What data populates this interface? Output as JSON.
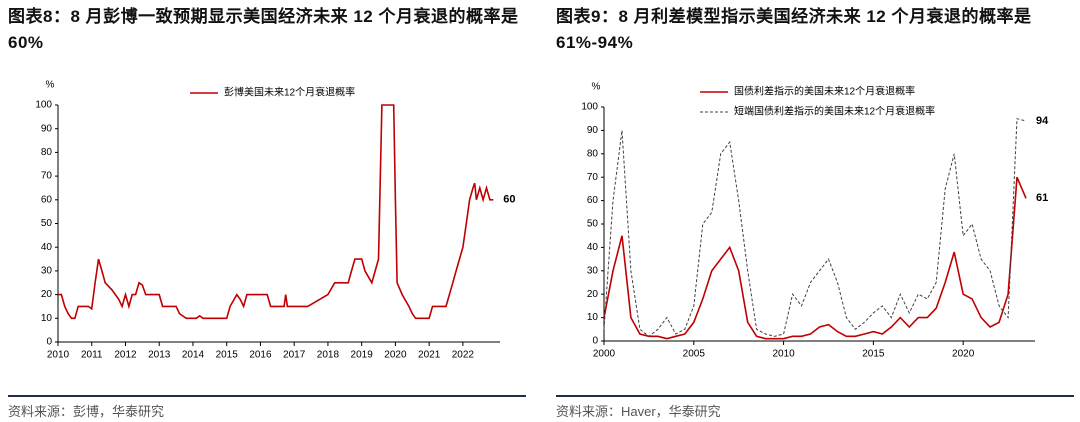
{
  "chart_data": [
    {
      "type": "line",
      "title": "图表8：8 月彭博一致预期显示美国经济未来 12 个月衰退的概率是 60%",
      "y_label": "%",
      "source": "资料来源：彭博，华泰研究",
      "xlim": [
        2010,
        2023.1
      ],
      "xticks": [
        2010,
        2011,
        2012,
        2013,
        2014,
        2015,
        2016,
        2017,
        2018,
        2019,
        2020,
        2021,
        2022
      ],
      "ylim": [
        0,
        100
      ],
      "yticks": [
        0,
        10,
        20,
        30,
        40,
        50,
        60,
        70,
        80,
        90,
        100
      ],
      "x": [
        2010.0,
        2010.1,
        2010.2,
        2010.3,
        2010.4,
        2010.5,
        2010.6,
        2010.9,
        2011.0,
        2011.1,
        2011.2,
        2011.3,
        2011.4,
        2011.6,
        2011.7,
        2011.8,
        2011.9,
        2012.0,
        2012.1,
        2012.2,
        2012.3,
        2012.4,
        2012.5,
        2012.6,
        2013.0,
        2013.1,
        2013.5,
        2013.6,
        2013.8,
        2014.1,
        2014.2,
        2014.3,
        2015.0,
        2015.1,
        2015.3,
        2015.4,
        2015.5,
        2015.6,
        2016.2,
        2016.3,
        2016.7,
        2016.75,
        2016.8,
        2017.4,
        2018.0,
        2018.2,
        2018.6,
        2018.7,
        2018.8,
        2019.0,
        2019.1,
        2019.3,
        2019.4,
        2019.5,
        2019.6,
        2019.95,
        2020.0,
        2020.05,
        2020.2,
        2020.4,
        2020.5,
        2020.6,
        2021.0,
        2021.1,
        2021.5,
        2021.6,
        2021.7,
        2021.8,
        2021.9,
        2022.0,
        2022.1,
        2022.2,
        2022.3,
        2022.35,
        2022.4,
        2022.5,
        2022.6,
        2022.7,
        2022.8,
        2022.9
      ],
      "series": [
        {
          "name": "彭博美国未来12个月衰退概率",
          "color": "#c00000",
          "line_style": "solid",
          "end_label": "60",
          "values": [
            20,
            20,
            15,
            12,
            10,
            10,
            15,
            15,
            14,
            25,
            35,
            30,
            25,
            22,
            20,
            18,
            15,
            20,
            15,
            20,
            20,
            25,
            24,
            20,
            20,
            15,
            15,
            12,
            10,
            10,
            11,
            10,
            10,
            15,
            20,
            18,
            15,
            20,
            20,
            15,
            15,
            20,
            15,
            15,
            20,
            25,
            25,
            30,
            35,
            35,
            30,
            25,
            30,
            35,
            100,
            100,
            60,
            25,
            20,
            15,
            12,
            10,
            10,
            15,
            15,
            20,
            25,
            30,
            35,
            40,
            50,
            60,
            65,
            67,
            60,
            65,
            60,
            65,
            60,
            60
          ]
        }
      ]
    },
    {
      "type": "line",
      "title": "图表9：8 月利差模型指示美国经济未来 12 个月衰退的概率是 61%-94%",
      "y_label": "%",
      "source": "资料来源：Haver，华泰研究",
      "xlim": [
        2000,
        2024
      ],
      "xticks": [
        2000,
        2005,
        2010,
        2015,
        2020
      ],
      "ylim": [
        0,
        100
      ],
      "yticks": [
        0,
        10,
        20,
        30,
        40,
        50,
        60,
        70,
        80,
        90,
        100
      ],
      "x": [
        2000,
        2000.5,
        2001,
        2001.5,
        2002,
        2002.5,
        2003,
        2003.5,
        2004,
        2004.5,
        2005,
        2005.5,
        2006,
        2006.5,
        2007,
        2007.5,
        2008,
        2008.5,
        2009,
        2009.5,
        2010,
        2010.5,
        2011,
        2011.5,
        2012,
        2012.5,
        2013,
        2013.5,
        2014,
        2014.5,
        2015,
        2015.5,
        2016,
        2016.5,
        2017,
        2017.5,
        2018,
        2018.5,
        2019,
        2019.5,
        2020,
        2020.5,
        2021,
        2021.5,
        2022,
        2022.5,
        2023,
        2023.5
      ],
      "series": [
        {
          "name": "国债利差指示的美国未来12个月衰退概率",
          "color": "#c00000",
          "line_style": "solid",
          "end_label": "61",
          "values": [
            10,
            30,
            45,
            10,
            3,
            2,
            2,
            1,
            2,
            3,
            8,
            18,
            30,
            35,
            40,
            30,
            8,
            2,
            1,
            1,
            1,
            2,
            2,
            3,
            6,
            7,
            4,
            2,
            2,
            3,
            4,
            3,
            6,
            10,
            6,
            10,
            10,
            14,
            25,
            38,
            20,
            18,
            10,
            6,
            8,
            20,
            70,
            61
          ]
        },
        {
          "name": "短端国债利差指示的美国未来12个月衰退概率",
          "color": "#404040",
          "line_style": "dashed",
          "end_label": "94",
          "values": [
            5,
            60,
            90,
            30,
            5,
            2,
            5,
            10,
            3,
            5,
            15,
            50,
            55,
            80,
            85,
            60,
            30,
            5,
            3,
            2,
            3,
            20,
            15,
            25,
            30,
            35,
            25,
            10,
            5,
            8,
            12,
            15,
            10,
            20,
            12,
            20,
            18,
            25,
            65,
            80,
            45,
            50,
            35,
            30,
            15,
            10,
            95,
            94
          ]
        }
      ]
    }
  ]
}
